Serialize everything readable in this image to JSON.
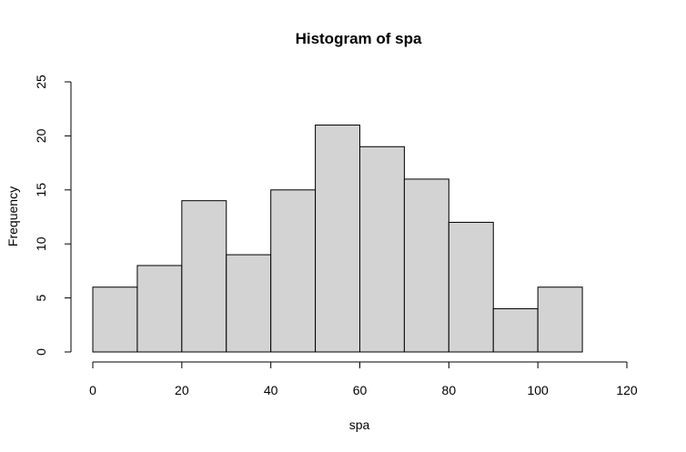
{
  "chart_data": {
    "type": "bar",
    "title": "Histogram of spa",
    "xlabel": "spa",
    "ylabel": "Frequency",
    "bins": [
      {
        "start": 0,
        "end": 10,
        "count": 6
      },
      {
        "start": 10,
        "end": 20,
        "count": 8
      },
      {
        "start": 20,
        "end": 30,
        "count": 14
      },
      {
        "start": 30,
        "end": 40,
        "count": 9
      },
      {
        "start": 40,
        "end": 50,
        "count": 15
      },
      {
        "start": 50,
        "end": 60,
        "count": 21
      },
      {
        "start": 60,
        "end": 70,
        "count": 19
      },
      {
        "start": 70,
        "end": 80,
        "count": 16
      },
      {
        "start": 80,
        "end": 90,
        "count": 12
      },
      {
        "start": 90,
        "end": 100,
        "count": 4
      },
      {
        "start": 100,
        "end": 110,
        "count": 6
      },
      {
        "start": 110,
        "end": 120,
        "count": 0
      }
    ],
    "xlim": [
      0,
      120
    ],
    "ylim": [
      0,
      25
    ],
    "x_ticks": [
      "0",
      "20",
      "40",
      "60",
      "80",
      "100",
      "120"
    ],
    "y_ticks": [
      "0",
      "5",
      "10",
      "15",
      "20",
      "25"
    ],
    "grid": false,
    "colors": {
      "bar_fill": "#d3d3d3",
      "bar_stroke": "#000000"
    }
  }
}
